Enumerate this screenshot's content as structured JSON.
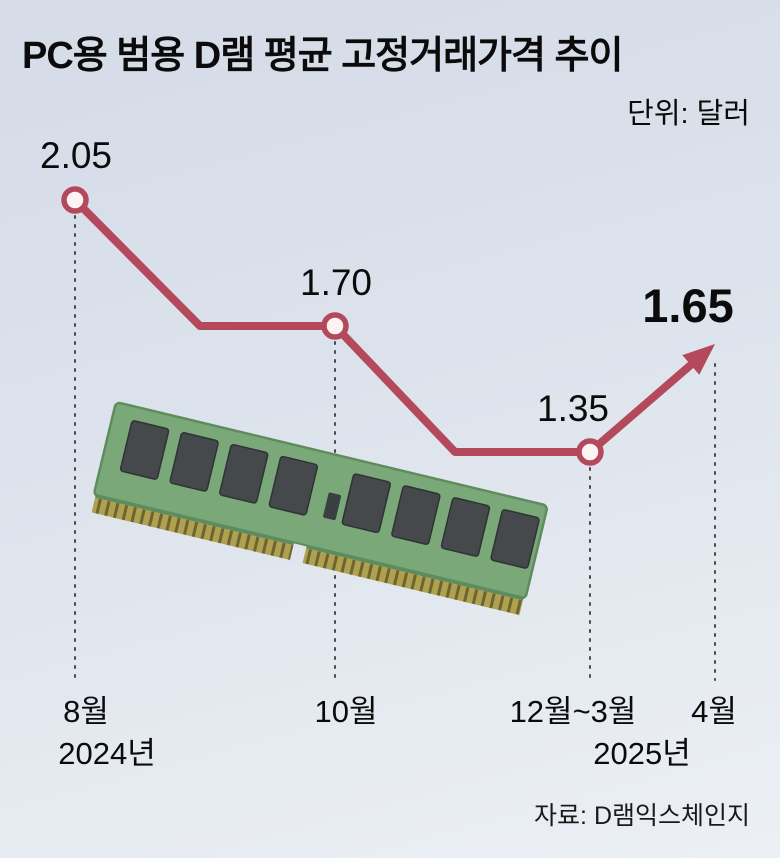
{
  "title": "PC용 범용 D램 평균 고정거래가격 추이",
  "unit": "단위: 달러",
  "source": "자료: D램익스체인지",
  "colors": {
    "line": "#b3495b",
    "point_fill": "#fdf3f3",
    "background_top": "#d5dbe7",
    "background_bottom": "#ecf0f5"
  },
  "chart_data": {
    "type": "line",
    "x": [
      "8월",
      "10월",
      "12월~3월",
      "4월"
    ],
    "values": [
      2.05,
      1.7,
      1.35,
      1.65
    ],
    "value_labels": [
      "2.05",
      "1.70",
      "1.35",
      "1.65"
    ],
    "title": "PC용 범용 D램 평균 고정거래가격 추이",
    "ylabel": "달러",
    "ylim": [
      1.2,
      2.1
    ],
    "grid": "dashed-vertical-droplines",
    "legend": "none",
    "annotations": [
      {
        "point": "4월",
        "style": "bold-label-with-up-arrow",
        "value": 1.65
      }
    ],
    "step_style": "diagonal-then-flat segments between points, rising arrow to last value",
    "line_color": "#b3495b"
  },
  "axis": {
    "years": [
      "2024년",
      "2025년"
    ]
  },
  "illustration": {
    "name": "dram-memory-module",
    "description": "green DIMM memory stick tilted clockwise with 8 dark chips and gold pin edge"
  }
}
